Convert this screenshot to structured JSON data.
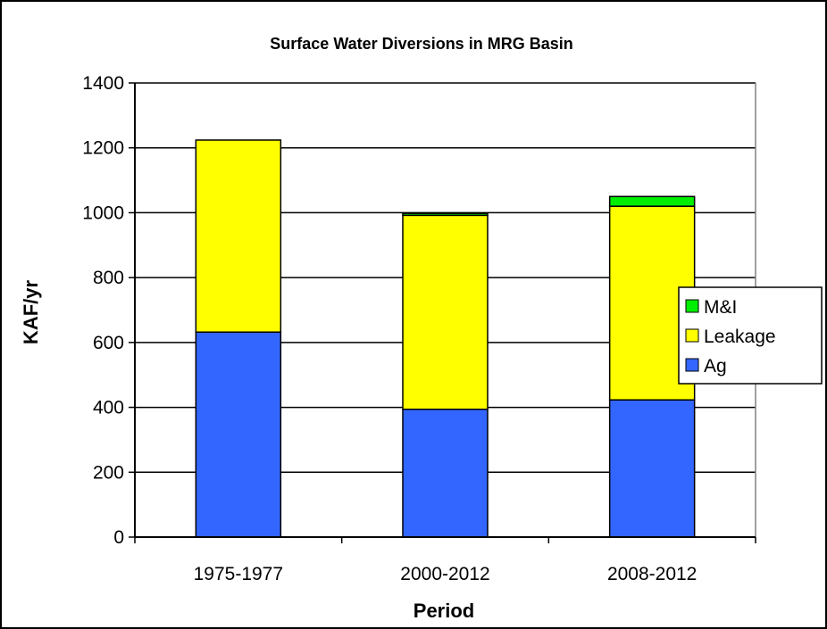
{
  "chart_data": {
    "type": "bar",
    "stacked": true,
    "title": "Surface Water Diversions in MRG Basin",
    "xlabel": "Period",
    "ylabel": "KAF/yr",
    "categories": [
      "1975-1977",
      "2000-2012",
      "2008-2012"
    ],
    "ylim": [
      0,
      1400
    ],
    "yticks": [
      0,
      200,
      400,
      600,
      800,
      1000,
      1200,
      1400
    ],
    "grid": true,
    "legend_position": "right",
    "series": [
      {
        "name": "Ag",
        "values": [
          632,
          394,
          423
        ],
        "color": "#3366FF"
      },
      {
        "name": "Leakage",
        "values": [
          592,
          598,
          597
        ],
        "color": "#FFFF00"
      },
      {
        "name": "M&I",
        "values": [
          0,
          6,
          30
        ],
        "color": "#00EE00"
      }
    ]
  }
}
